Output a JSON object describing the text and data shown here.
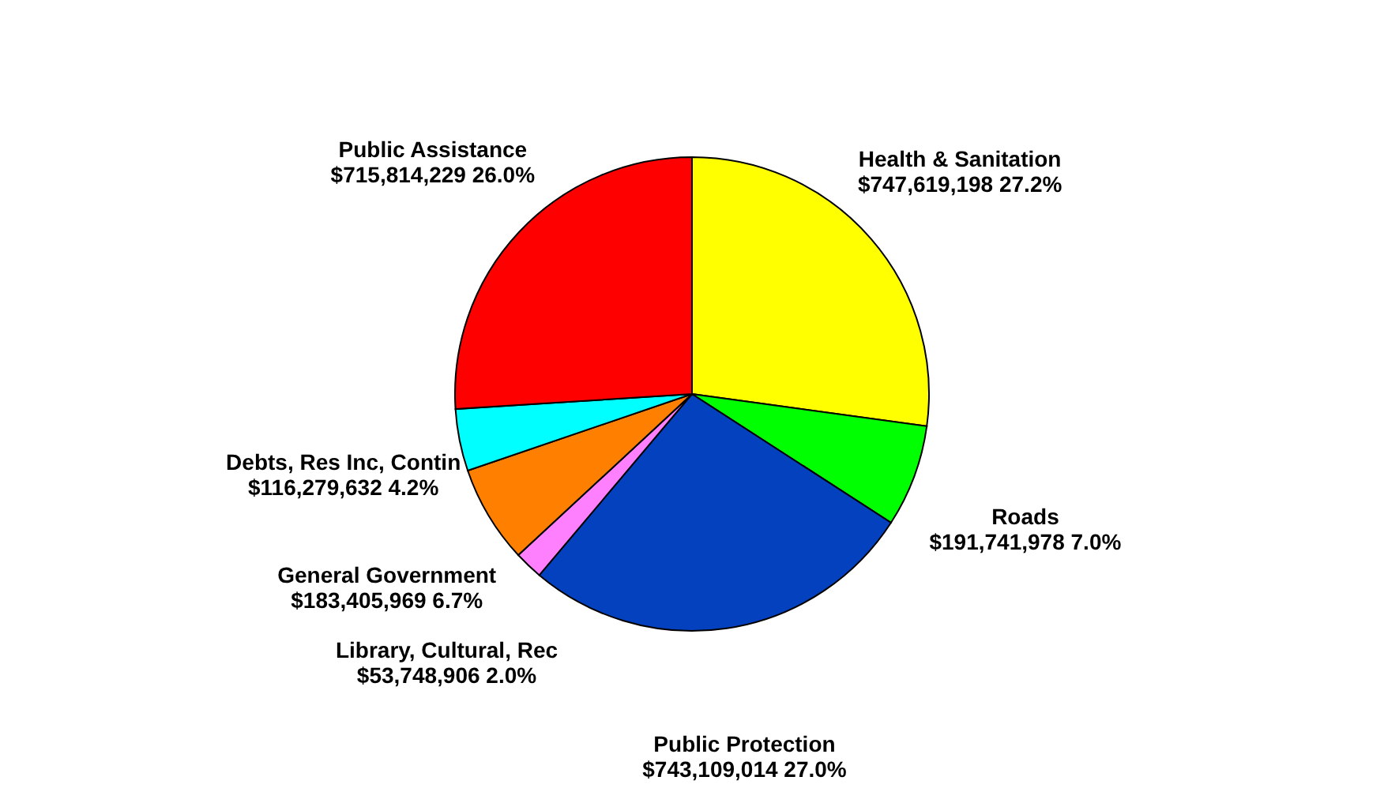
{
  "chart_data": {
    "type": "pie",
    "categories": [
      "Health & Sanitation",
      "Roads",
      "Public Protection",
      "Library, Cultural, Rec",
      "General Government",
      "Debts, Res Inc, Contin",
      "Public Assistance"
    ],
    "values": [
      747619198,
      191741978,
      743109014,
      53748906,
      183405969,
      116279632,
      715814229
    ],
    "colors": [
      "#ffff00",
      "#00ff00",
      "#0441bf",
      "#ff80ff",
      "#ff8000",
      "#00ffff",
      "#ff0000"
    ],
    "value_labels": [
      "$747,619,198  27.2%",
      "$191,741,978  7.0%",
      "$743,109,014  27.0%",
      "$53,748,906  2.0%",
      "$183,405,969  6.7%",
      "$116,279,632  4.2%",
      "$715,814,229  26.0%"
    ],
    "legend": false
  }
}
